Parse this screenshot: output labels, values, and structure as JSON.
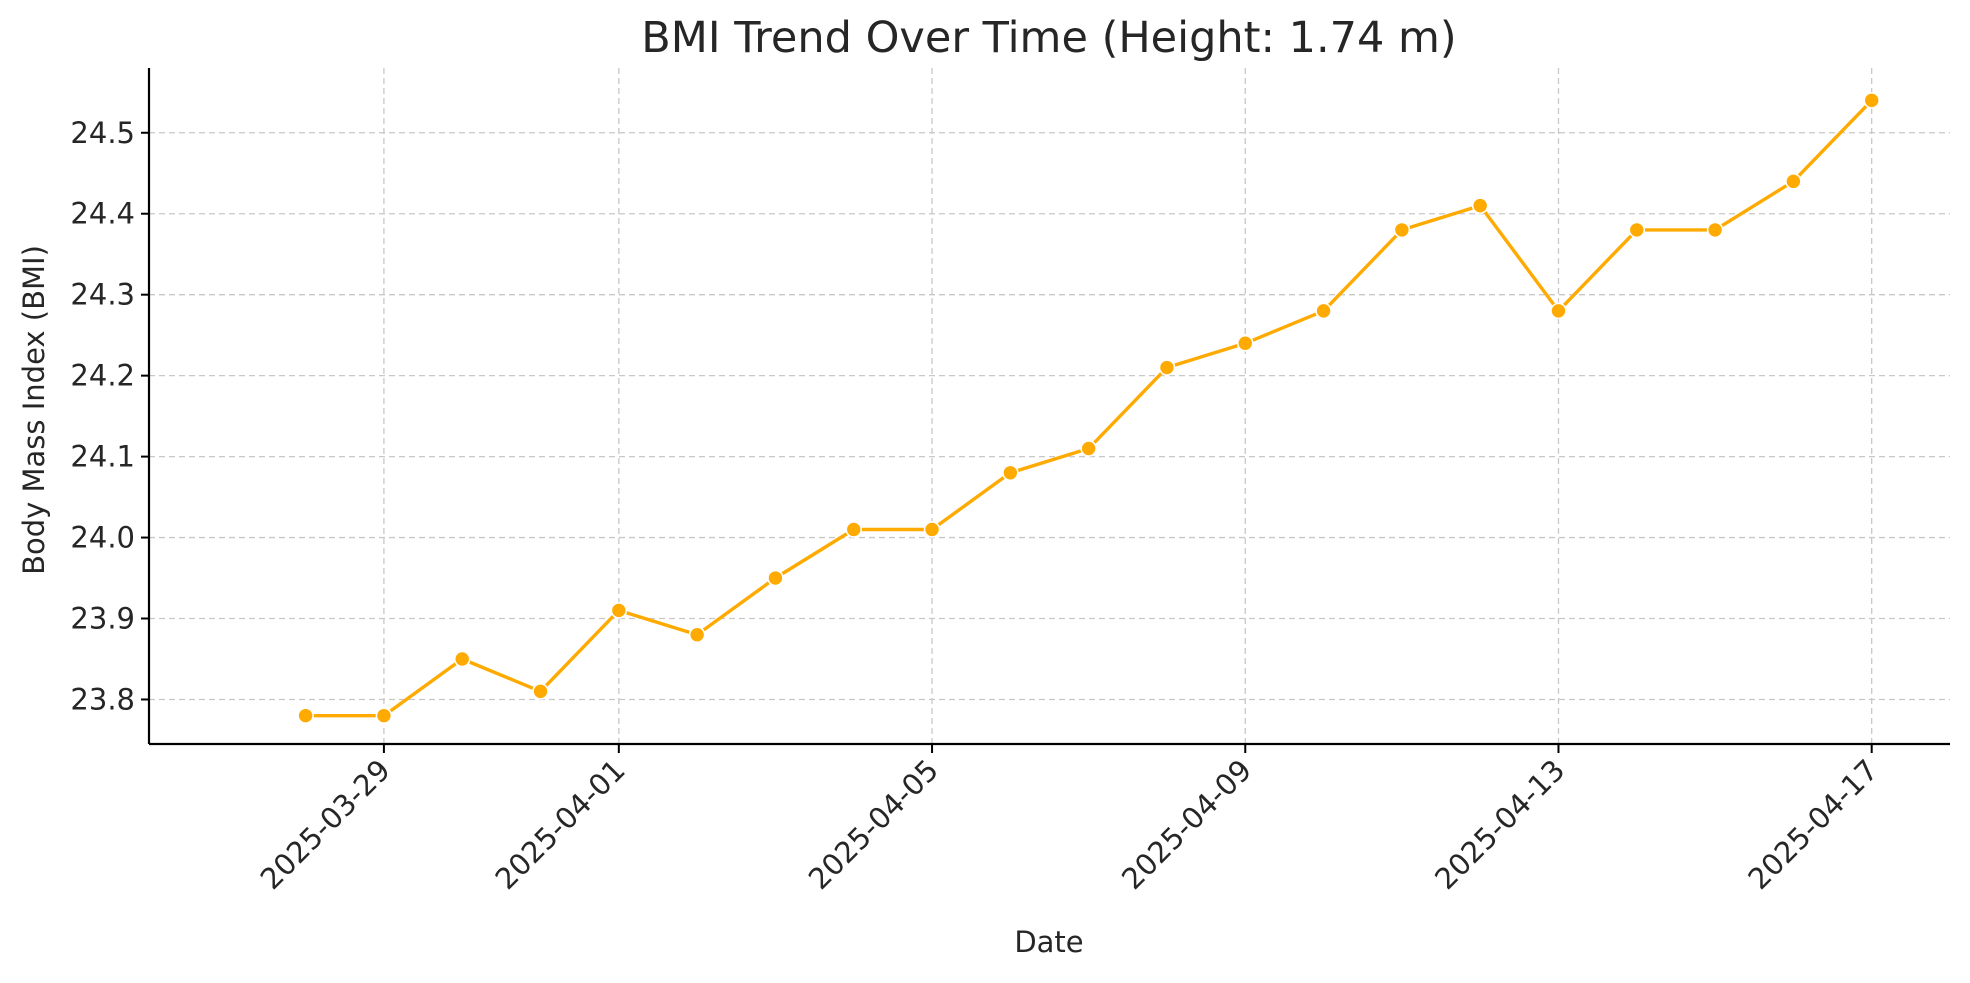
{
  "chart_data": {
    "type": "line",
    "title": "BMI Trend Over Time (Height: 1.74 m)",
    "xlabel": "Date",
    "ylabel": "Body Mass Index (BMI)",
    "x_ticks": [
      "2025-03-29",
      "2025-04-01",
      "2025-04-05",
      "2025-04-09",
      "2025-04-13",
      "2025-04-17"
    ],
    "y_ticks": [
      "23.8",
      "23.9",
      "24.0",
      "24.1",
      "24.2",
      "24.3",
      "24.4",
      "24.5"
    ],
    "ylim": [
      23.745,
      24.58
    ],
    "xlim": [
      "2025-03-26",
      "2025-04-18"
    ],
    "grid": true,
    "series": [
      {
        "color": "#FFAA00",
        "marker": "circle",
        "points": [
          {
            "x": "2025-03-28",
            "y": 23.78
          },
          {
            "x": "2025-03-29",
            "y": 23.78
          },
          {
            "x": "2025-03-30",
            "y": 23.85
          },
          {
            "x": "2025-03-31",
            "y": 23.81
          },
          {
            "x": "2025-04-01",
            "y": 23.91
          },
          {
            "x": "2025-04-02",
            "y": 23.88
          },
          {
            "x": "2025-04-03",
            "y": 23.95
          },
          {
            "x": "2025-04-04",
            "y": 24.01
          },
          {
            "x": "2025-04-05",
            "y": 24.01
          },
          {
            "x": "2025-04-06",
            "y": 24.08
          },
          {
            "x": "2025-04-07",
            "y": 24.11
          },
          {
            "x": "2025-04-08",
            "y": 24.21
          },
          {
            "x": "2025-04-09",
            "y": 24.24
          },
          {
            "x": "2025-04-10",
            "y": 24.28
          },
          {
            "x": "2025-04-11",
            "y": 24.38
          },
          {
            "x": "2025-04-12",
            "y": 24.41
          },
          {
            "x": "2025-04-13",
            "y": 24.28
          },
          {
            "x": "2025-04-14",
            "y": 24.38
          },
          {
            "x": "2025-04-15",
            "y": 24.38
          },
          {
            "x": "2025-04-16",
            "y": 24.44
          },
          {
            "x": "2025-04-17",
            "y": 24.54
          }
        ]
      }
    ]
  }
}
